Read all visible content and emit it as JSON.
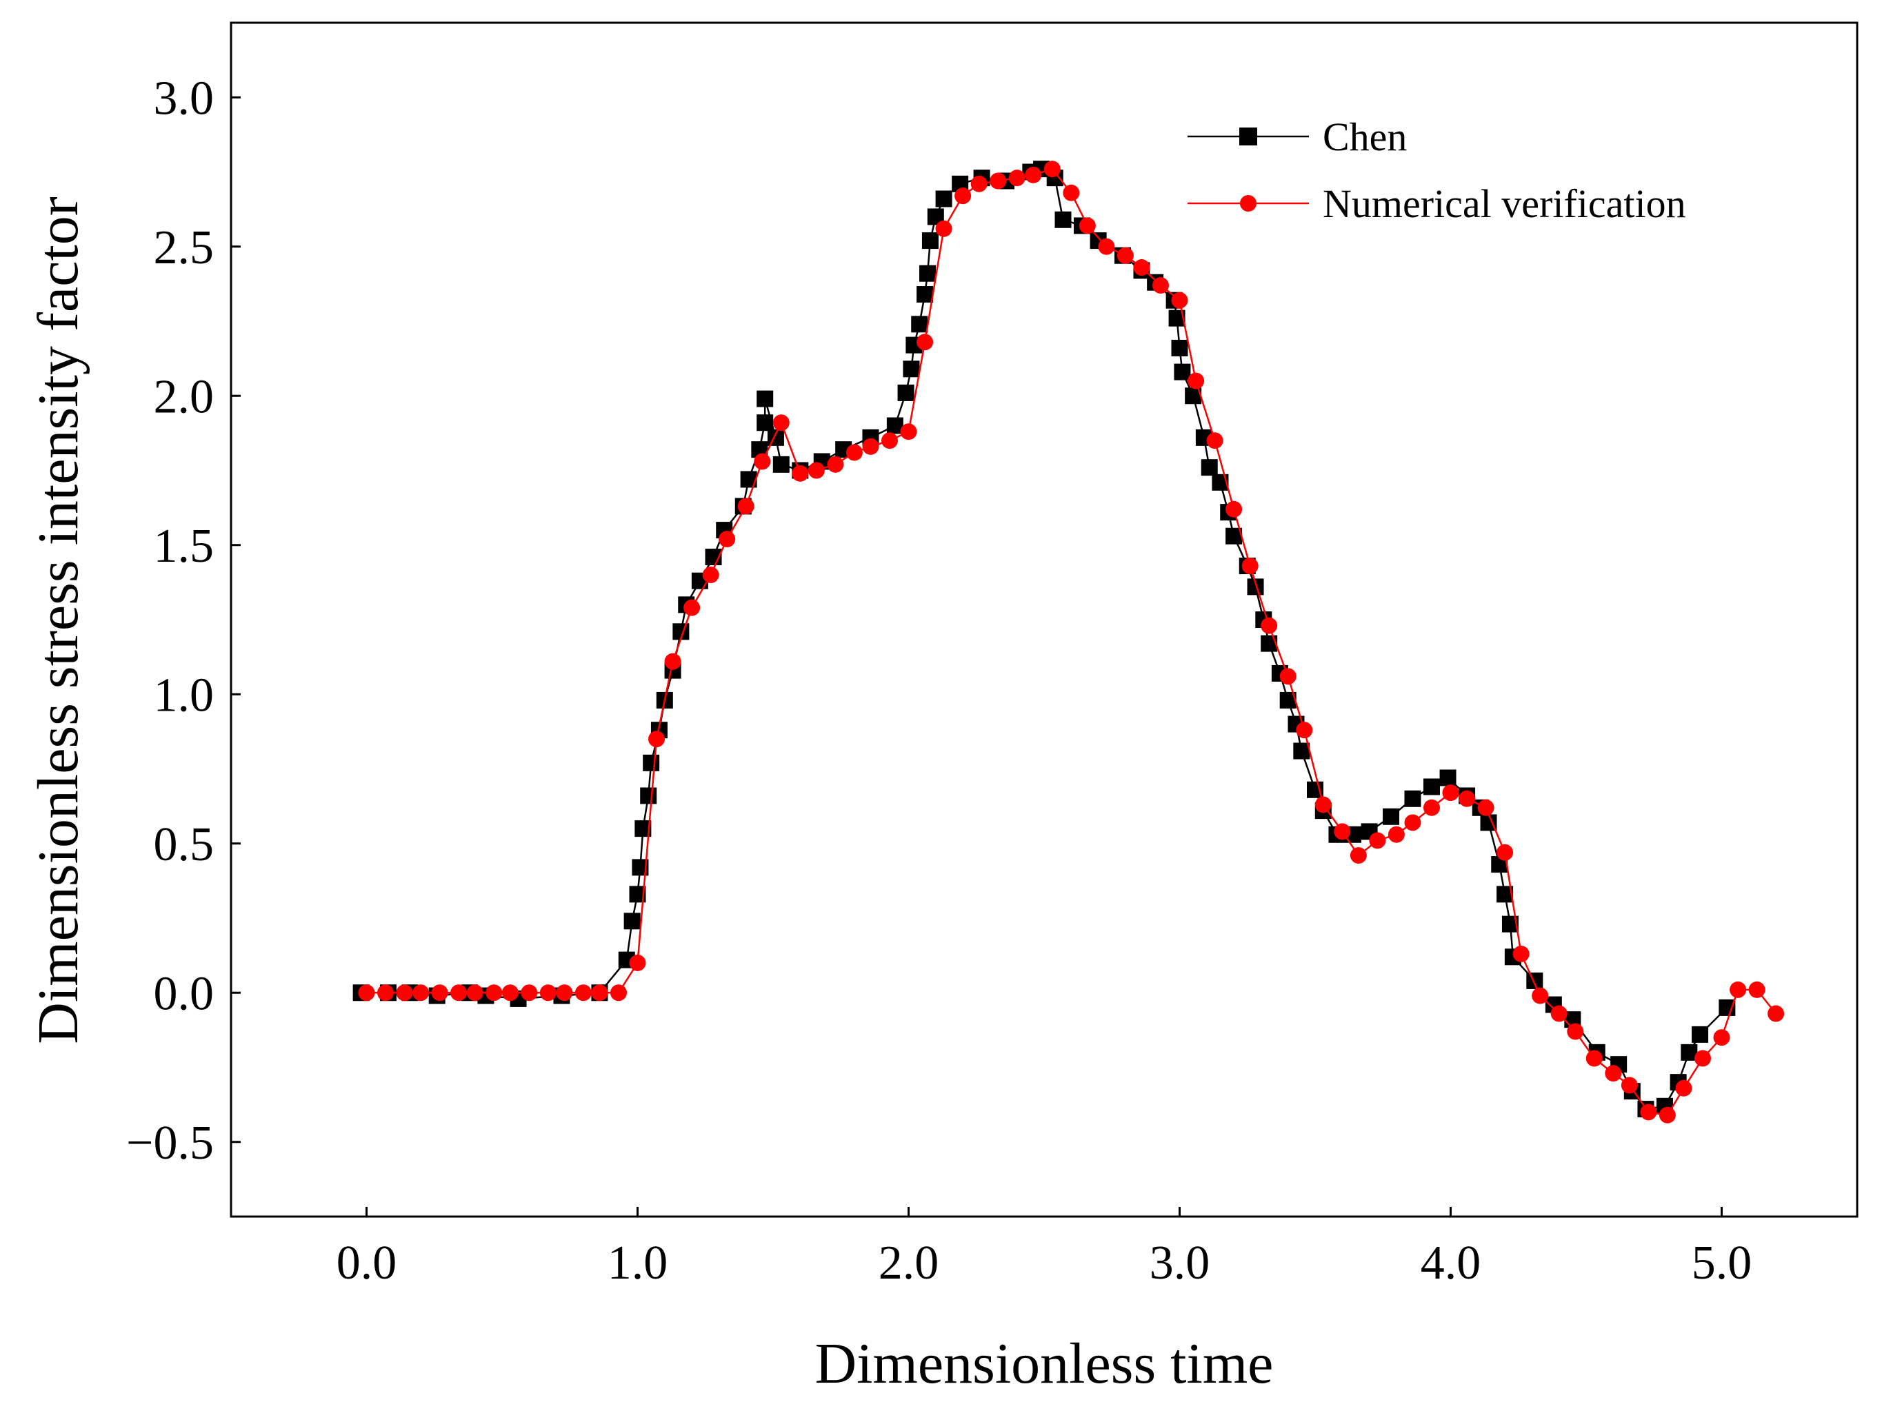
{
  "chart_data": {
    "type": "line",
    "title": "",
    "xlabel": "Dimensionless time",
    "ylabel": "Dimensionless stress intensity factor",
    "xlim": [
      -0.5,
      5.5
    ],
    "ylim": [
      -0.75,
      3.25
    ],
    "x_ticks": [
      0.0,
      1.0,
      2.0,
      3.0,
      4.0,
      5.0
    ],
    "x_tick_labels": [
      "0.0",
      "1.0",
      "2.0",
      "3.0",
      "4.0",
      "5.0"
    ],
    "y_ticks": [
      -0.5,
      0.0,
      0.5,
      1.0,
      1.5,
      2.0,
      2.5,
      3.0
    ],
    "y_tick_labels": [
      "−0.5",
      "0.0",
      "0.5",
      "1.0",
      "1.5",
      "2.0",
      "2.5",
      "3.0"
    ],
    "grid": false,
    "legend_position": "top-right",
    "series": [
      {
        "name": "Chen",
        "color": "#000000",
        "marker": "square",
        "points": [
          [
            -0.02,
            0.0
          ],
          [
            0.08,
            0.0
          ],
          [
            0.16,
            0.0
          ],
          [
            0.26,
            -0.01
          ],
          [
            0.38,
            0.0
          ],
          [
            0.44,
            -0.01
          ],
          [
            0.56,
            -0.02
          ],
          [
            0.72,
            -0.01
          ],
          [
            0.86,
            0.0
          ],
          [
            0.96,
            0.11
          ],
          [
            0.98,
            0.24
          ],
          [
            1.0,
            0.33
          ],
          [
            1.01,
            0.42
          ],
          [
            1.02,
            0.55
          ],
          [
            1.04,
            0.66
          ],
          [
            1.05,
            0.77
          ],
          [
            1.08,
            0.88
          ],
          [
            1.1,
            0.98
          ],
          [
            1.13,
            1.08
          ],
          [
            1.16,
            1.21
          ],
          [
            1.18,
            1.3
          ],
          [
            1.23,
            1.38
          ],
          [
            1.28,
            1.46
          ],
          [
            1.32,
            1.55
          ],
          [
            1.39,
            1.63
          ],
          [
            1.41,
            1.72
          ],
          [
            1.45,
            1.82
          ],
          [
            1.47,
            1.91
          ],
          [
            1.47,
            1.99
          ],
          [
            1.51,
            1.86
          ],
          [
            1.53,
            1.77
          ],
          [
            1.6,
            1.75
          ],
          [
            1.68,
            1.78
          ],
          [
            1.76,
            1.82
          ],
          [
            1.86,
            1.86
          ],
          [
            1.95,
            1.9
          ],
          [
            1.99,
            2.01
          ],
          [
            2.01,
            2.09
          ],
          [
            2.02,
            2.17
          ],
          [
            2.04,
            2.24
          ],
          [
            2.06,
            2.34
          ],
          [
            2.07,
            2.41
          ],
          [
            2.08,
            2.52
          ],
          [
            2.1,
            2.6
          ],
          [
            2.13,
            2.66
          ],
          [
            2.19,
            2.71
          ],
          [
            2.27,
            2.73
          ],
          [
            2.36,
            2.72
          ],
          [
            2.45,
            2.75
          ],
          [
            2.49,
            2.76
          ],
          [
            2.54,
            2.73
          ],
          [
            2.57,
            2.59
          ],
          [
            2.64,
            2.57
          ],
          [
            2.7,
            2.52
          ],
          [
            2.79,
            2.47
          ],
          [
            2.86,
            2.42
          ],
          [
            2.91,
            2.38
          ],
          [
            2.98,
            2.32
          ],
          [
            2.99,
            2.26
          ],
          [
            3.0,
            2.16
          ],
          [
            3.01,
            2.08
          ],
          [
            3.05,
            2.0
          ],
          [
            3.09,
            1.86
          ],
          [
            3.11,
            1.76
          ],
          [
            3.15,
            1.71
          ],
          [
            3.18,
            1.61
          ],
          [
            3.2,
            1.53
          ],
          [
            3.25,
            1.43
          ],
          [
            3.28,
            1.36
          ],
          [
            3.31,
            1.25
          ],
          [
            3.33,
            1.17
          ],
          [
            3.37,
            1.07
          ],
          [
            3.4,
            0.98
          ],
          [
            3.43,
            0.9
          ],
          [
            3.45,
            0.81
          ],
          [
            3.5,
            0.68
          ],
          [
            3.53,
            0.61
          ],
          [
            3.58,
            0.53
          ],
          [
            3.64,
            0.53
          ],
          [
            3.7,
            0.54
          ],
          [
            3.78,
            0.59
          ],
          [
            3.86,
            0.65
          ],
          [
            3.93,
            0.69
          ],
          [
            3.99,
            0.72
          ],
          [
            4.06,
            0.66
          ],
          [
            4.11,
            0.62
          ],
          [
            4.14,
            0.57
          ],
          [
            4.18,
            0.43
          ],
          [
            4.2,
            0.33
          ],
          [
            4.22,
            0.23
          ],
          [
            4.23,
            0.12
          ],
          [
            4.31,
            0.04
          ],
          [
            4.38,
            -0.04
          ],
          [
            4.45,
            -0.09
          ],
          [
            4.54,
            -0.2
          ],
          [
            4.62,
            -0.24
          ],
          [
            4.67,
            -0.33
          ],
          [
            4.72,
            -0.39
          ],
          [
            4.79,
            -0.38
          ],
          [
            4.84,
            -0.3
          ],
          [
            4.88,
            -0.2
          ],
          [
            4.92,
            -0.14
          ],
          [
            5.02,
            -0.05
          ]
        ]
      },
      {
        "name": "Numerical verification",
        "color": "#ff0000",
        "marker": "circle",
        "points": [
          [
            0.0,
            0.0
          ],
          [
            0.07,
            0.0
          ],
          [
            0.14,
            0.0
          ],
          [
            0.2,
            0.0
          ],
          [
            0.27,
            0.0
          ],
          [
            0.34,
            0.0
          ],
          [
            0.4,
            0.0
          ],
          [
            0.47,
            0.0
          ],
          [
            0.53,
            0.0
          ],
          [
            0.6,
            0.0
          ],
          [
            0.67,
            0.0
          ],
          [
            0.73,
            0.0
          ],
          [
            0.8,
            0.0
          ],
          [
            0.86,
            0.0
          ],
          [
            0.93,
            0.0
          ],
          [
            1.0,
            0.1
          ],
          [
            1.07,
            0.85
          ],
          [
            1.13,
            1.11
          ],
          [
            1.2,
            1.29
          ],
          [
            1.27,
            1.4
          ],
          [
            1.33,
            1.52
          ],
          [
            1.4,
            1.63
          ],
          [
            1.46,
            1.78
          ],
          [
            1.53,
            1.91
          ],
          [
            1.6,
            1.74
          ],
          [
            1.66,
            1.75
          ],
          [
            1.73,
            1.77
          ],
          [
            1.8,
            1.81
          ],
          [
            1.86,
            1.83
          ],
          [
            1.93,
            1.85
          ],
          [
            2.0,
            1.88
          ],
          [
            2.06,
            2.18
          ],
          [
            2.13,
            2.56
          ],
          [
            2.2,
            2.67
          ],
          [
            2.26,
            2.71
          ],
          [
            2.33,
            2.72
          ],
          [
            2.4,
            2.73
          ],
          [
            2.46,
            2.74
          ],
          [
            2.53,
            2.76
          ],
          [
            2.6,
            2.68
          ],
          [
            2.66,
            2.57
          ],
          [
            2.73,
            2.5
          ],
          [
            2.8,
            2.47
          ],
          [
            2.86,
            2.43
          ],
          [
            2.93,
            2.37
          ],
          [
            3.0,
            2.32
          ],
          [
            3.06,
            2.05
          ],
          [
            3.13,
            1.85
          ],
          [
            3.2,
            1.62
          ],
          [
            3.26,
            1.43
          ],
          [
            3.33,
            1.23
          ],
          [
            3.4,
            1.06
          ],
          [
            3.46,
            0.88
          ],
          [
            3.53,
            0.63
          ],
          [
            3.6,
            0.54
          ],
          [
            3.66,
            0.46
          ],
          [
            3.73,
            0.51
          ],
          [
            3.8,
            0.53
          ],
          [
            3.86,
            0.57
          ],
          [
            3.93,
            0.62
          ],
          [
            4.0,
            0.67
          ],
          [
            4.06,
            0.65
          ],
          [
            4.13,
            0.62
          ],
          [
            4.2,
            0.47
          ],
          [
            4.26,
            0.13
          ],
          [
            4.33,
            -0.01
          ],
          [
            4.4,
            -0.07
          ],
          [
            4.46,
            -0.13
          ],
          [
            4.53,
            -0.22
          ],
          [
            4.6,
            -0.27
          ],
          [
            4.66,
            -0.31
          ],
          [
            4.73,
            -0.4
          ],
          [
            4.8,
            -0.41
          ],
          [
            4.86,
            -0.32
          ],
          [
            4.93,
            -0.22
          ],
          [
            5.0,
            -0.15
          ],
          [
            5.06,
            0.01
          ],
          [
            5.13,
            0.01
          ],
          [
            5.2,
            -0.07
          ]
        ]
      }
    ]
  }
}
